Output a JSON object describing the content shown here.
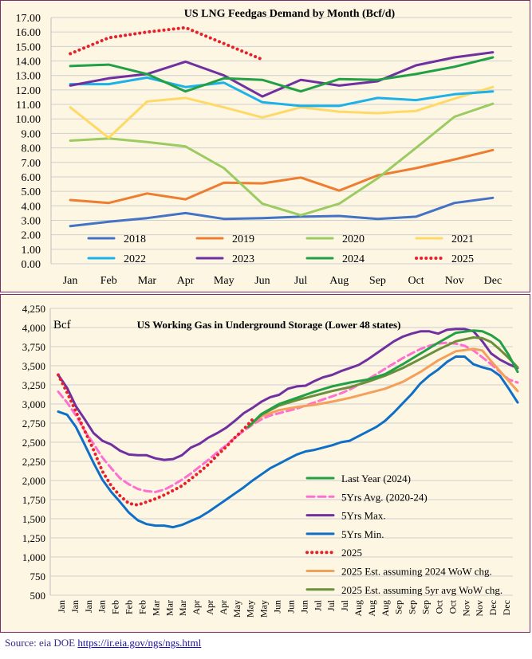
{
  "chart_data": [
    {
      "type": "line",
      "title": "US LNG Feedgas Demand by Month (Bcf/d)",
      "categories": [
        "Jan",
        "Feb",
        "Mar",
        "Apr",
        "May",
        "Jun",
        "Jul",
        "Aug",
        "Sep",
        "Oct",
        "Nov",
        "Dec"
      ],
      "ylim": [
        0,
        17
      ],
      "yticks": [
        "0.00",
        "1.00",
        "2.00",
        "3.00",
        "4.00",
        "5.00",
        "6.00",
        "7.00",
        "8.00",
        "9.00",
        "10.00",
        "11.00",
        "12.00",
        "13.00",
        "14.00",
        "15.00",
        "16.00",
        "17.00"
      ],
      "grid": true,
      "legend_position": "bottom-inside",
      "series": [
        {
          "name": "2018",
          "color": "#4472c4",
          "style": "solid",
          "values": [
            2.6,
            2.9,
            3.15,
            3.5,
            3.1,
            3.15,
            3.25,
            3.3,
            3.1,
            3.25,
            4.2,
            4.55
          ]
        },
        {
          "name": "2019",
          "color": "#ed7d31",
          "style": "solid",
          "values": [
            4.4,
            4.2,
            4.85,
            4.45,
            5.6,
            5.55,
            5.95,
            5.05,
            6.1,
            6.6,
            7.2,
            7.85
          ]
        },
        {
          "name": "2020",
          "color": "#9bcb61",
          "style": "solid",
          "values": [
            8.5,
            8.65,
            8.4,
            8.1,
            6.6,
            4.15,
            3.35,
            4.15,
            5.9,
            8.0,
            10.15,
            11.05
          ]
        },
        {
          "name": "2021",
          "color": "#ffd966",
          "style": "solid",
          "values": [
            10.8,
            8.7,
            11.2,
            11.45,
            10.8,
            10.1,
            10.8,
            10.5,
            10.4,
            10.55,
            11.4,
            12.2
          ]
        },
        {
          "name": "2022",
          "color": "#1cb1e8",
          "style": "solid",
          "values": [
            12.4,
            12.4,
            12.85,
            12.2,
            12.5,
            11.15,
            10.9,
            10.9,
            11.45,
            11.3,
            11.7,
            11.9
          ]
        },
        {
          "name": "2023",
          "color": "#7030a0",
          "style": "solid",
          "values": [
            12.3,
            12.8,
            13.1,
            13.95,
            13.0,
            11.55,
            12.7,
            12.3,
            12.6,
            13.7,
            14.25,
            14.6
          ]
        },
        {
          "name": "2024",
          "color": "#22a046",
          "style": "solid",
          "values": [
            13.65,
            13.75,
            13.1,
            11.9,
            12.8,
            12.7,
            11.9,
            12.75,
            12.7,
            13.1,
            13.6,
            14.25
          ]
        },
        {
          "name": "2025",
          "color": "#e8202a",
          "style": "dotted",
          "values": [
            14.5,
            15.6,
            16.0,
            16.3,
            15.2,
            14.1,
            null,
            null,
            null,
            null,
            null,
            null
          ]
        }
      ]
    },
    {
      "type": "line",
      "title": "US Working Gas in Underground Storage (Lower 48 states)",
      "ylabel": "Bcf",
      "x_tick_labels": [
        "Jan",
        "Jan",
        "Jan",
        "Jan",
        "Feb",
        "Feb",
        "Feb",
        "Mar",
        "Mar",
        "Mar",
        "Apr",
        "Apr",
        "Apr",
        "May",
        "May",
        "May",
        "Jun",
        "Jun",
        "Jun",
        "Jul",
        "Jul",
        "Jul",
        "Aug",
        "Aug",
        "Aug",
        "Sep",
        "Sep",
        "Sep",
        "Oct",
        "Oct",
        "Nov",
        "Nov",
        "Dec",
        "Dec"
      ],
      "ylim": [
        500,
        4250
      ],
      "yticks": [
        "500",
        "750",
        "1,000",
        "1,250",
        "1,500",
        "1,750",
        "2,000",
        "2,250",
        "2,500",
        "2,750",
        "3,000",
        "3,250",
        "3,500",
        "3,750",
        "4,000",
        "4,250"
      ],
      "x_domain": [
        0,
        52
      ],
      "grid": true,
      "legend_position": "bottom-right",
      "series": [
        {
          "name": "Last Year (2024)",
          "color": "#22a046",
          "style": "solid",
          "x": [
            21.5,
            23,
            25,
            27,
            29,
            31,
            33,
            35,
            37,
            39,
            41,
            43,
            45,
            47,
            48,
            49,
            50,
            51,
            52
          ],
          "values": [
            2700,
            2870,
            3000,
            3080,
            3160,
            3230,
            3280,
            3320,
            3390,
            3520,
            3660,
            3800,
            3930,
            3960,
            3950,
            3900,
            3820,
            3640,
            3420
          ]
        },
        {
          "name": "5Yrs Avg. (2020-24)",
          "color": "#ff6fcf",
          "style": "dashed",
          "x": [
            0,
            1,
            2,
            3,
            4,
            5,
            6,
            7,
            8,
            9,
            10,
            11,
            12,
            13,
            14,
            15,
            16,
            17,
            18,
            19,
            20,
            21,
            22,
            23,
            24,
            25,
            26,
            27,
            28,
            29,
            30,
            31,
            32,
            33,
            34,
            35,
            36,
            37,
            38,
            39,
            40,
            41,
            42,
            43,
            44,
            45,
            46,
            47,
            48,
            49,
            50,
            51,
            52
          ],
          "values": [
            3160,
            3020,
            2850,
            2650,
            2480,
            2300,
            2160,
            2030,
            1950,
            1890,
            1860,
            1850,
            1880,
            1940,
            2010,
            2090,
            2180,
            2270,
            2370,
            2460,
            2560,
            2650,
            2730,
            2800,
            2850,
            2880,
            2910,
            2940,
            2980,
            3020,
            3060,
            3100,
            3140,
            3190,
            3250,
            3320,
            3390,
            3460,
            3530,
            3600,
            3660,
            3720,
            3760,
            3790,
            3800,
            3790,
            3760,
            3700,
            3610,
            3520,
            3420,
            3320,
            3280
          ]
        },
        {
          "name": "5Yrs Max.",
          "color": "#7030a0",
          "style": "solid",
          "x": [
            0,
            1,
            2,
            3,
            4,
            5,
            6,
            7,
            8,
            9,
            10,
            11,
            12,
            13,
            14,
            15,
            16,
            17,
            18,
            19,
            20,
            21,
            22,
            23,
            24,
            25,
            26,
            27,
            28,
            29,
            30,
            31,
            32,
            33,
            34,
            35,
            36,
            37,
            38,
            39,
            40,
            41,
            42,
            43,
            44,
            45,
            46,
            47,
            48,
            49,
            50,
            51,
            52
          ],
          "values": [
            3380,
            3210,
            2970,
            2800,
            2620,
            2520,
            2470,
            2390,
            2340,
            2330,
            2330,
            2290,
            2270,
            2280,
            2330,
            2430,
            2480,
            2560,
            2620,
            2690,
            2780,
            2880,
            2950,
            3030,
            3090,
            3120,
            3200,
            3230,
            3240,
            3300,
            3350,
            3380,
            3430,
            3470,
            3510,
            3580,
            3660,
            3740,
            3820,
            3880,
            3920,
            3950,
            3950,
            3920,
            3970,
            3980,
            3980,
            3950,
            3820,
            3660,
            3580,
            3520,
            3470
          ]
        },
        {
          "name": "5Yrs Min.",
          "color": "#0f6fc6",
          "style": "solid",
          "x": [
            0,
            1,
            2,
            3,
            4,
            5,
            6,
            7,
            8,
            9,
            10,
            11,
            12,
            13,
            14,
            15,
            16,
            17,
            18,
            19,
            20,
            21,
            22,
            23,
            24,
            25,
            26,
            27,
            28,
            29,
            30,
            31,
            32,
            33,
            34,
            35,
            36,
            37,
            38,
            39,
            40,
            41,
            42,
            43,
            44,
            45,
            46,
            47,
            48,
            49,
            50,
            51,
            52
          ],
          "values": [
            2900,
            2860,
            2700,
            2470,
            2230,
            2010,
            1850,
            1720,
            1580,
            1480,
            1430,
            1410,
            1410,
            1390,
            1420,
            1470,
            1520,
            1590,
            1670,
            1750,
            1830,
            1910,
            2000,
            2080,
            2160,
            2220,
            2280,
            2340,
            2380,
            2400,
            2430,
            2460,
            2500,
            2520,
            2580,
            2640,
            2700,
            2780,
            2890,
            3010,
            3130,
            3270,
            3370,
            3450,
            3550,
            3620,
            3620,
            3520,
            3480,
            3450,
            3370,
            3200,
            3020
          ]
        },
        {
          "name": "2025",
          "color": "#e8202a",
          "style": "dotted",
          "x": [
            0,
            1,
            2,
            3,
            4,
            5,
            6,
            7,
            8,
            9,
            10,
            11,
            12,
            13,
            14,
            15,
            16,
            17,
            18,
            19,
            20,
            21,
            22
          ],
          "values": [
            3380,
            3150,
            2900,
            2650,
            2400,
            2120,
            1930,
            1800,
            1700,
            1680,
            1720,
            1760,
            1810,
            1870,
            1930,
            2020,
            2110,
            2210,
            2330,
            2440,
            2560,
            2670,
            2800
          ]
        },
        {
          "name": "2025 Est. assuming 2024 WoW chg.",
          "color": "#f4a05a",
          "style": "solid",
          "x": [
            21.5,
            23,
            25,
            27,
            29,
            31,
            33,
            35,
            37,
            39,
            41,
            43,
            45,
            47,
            48,
            49,
            50,
            51,
            52
          ],
          "values": [
            2700,
            2840,
            2920,
            2960,
            2990,
            3030,
            3080,
            3140,
            3200,
            3290,
            3420,
            3570,
            3690,
            3720,
            3700,
            3560,
            3430,
            3300,
            3170
          ]
        },
        {
          "name": "2025 Est. assuming 5yr avg WoW chg.",
          "color": "#6b8f3a",
          "style": "solid",
          "x": [
            21.5,
            23,
            25,
            27,
            29,
            31,
            33,
            35,
            37,
            39,
            41,
            43,
            45,
            47,
            48,
            49,
            50,
            51,
            52
          ],
          "values": [
            2700,
            2860,
            2980,
            3050,
            3110,
            3170,
            3220,
            3290,
            3370,
            3470,
            3590,
            3710,
            3820,
            3870,
            3860,
            3810,
            3710,
            3600,
            3480
          ]
        }
      ]
    }
  ],
  "source": {
    "label": "Source: eia DOE",
    "link": "https://ir.eia.gov/ngs/ngs.html"
  }
}
